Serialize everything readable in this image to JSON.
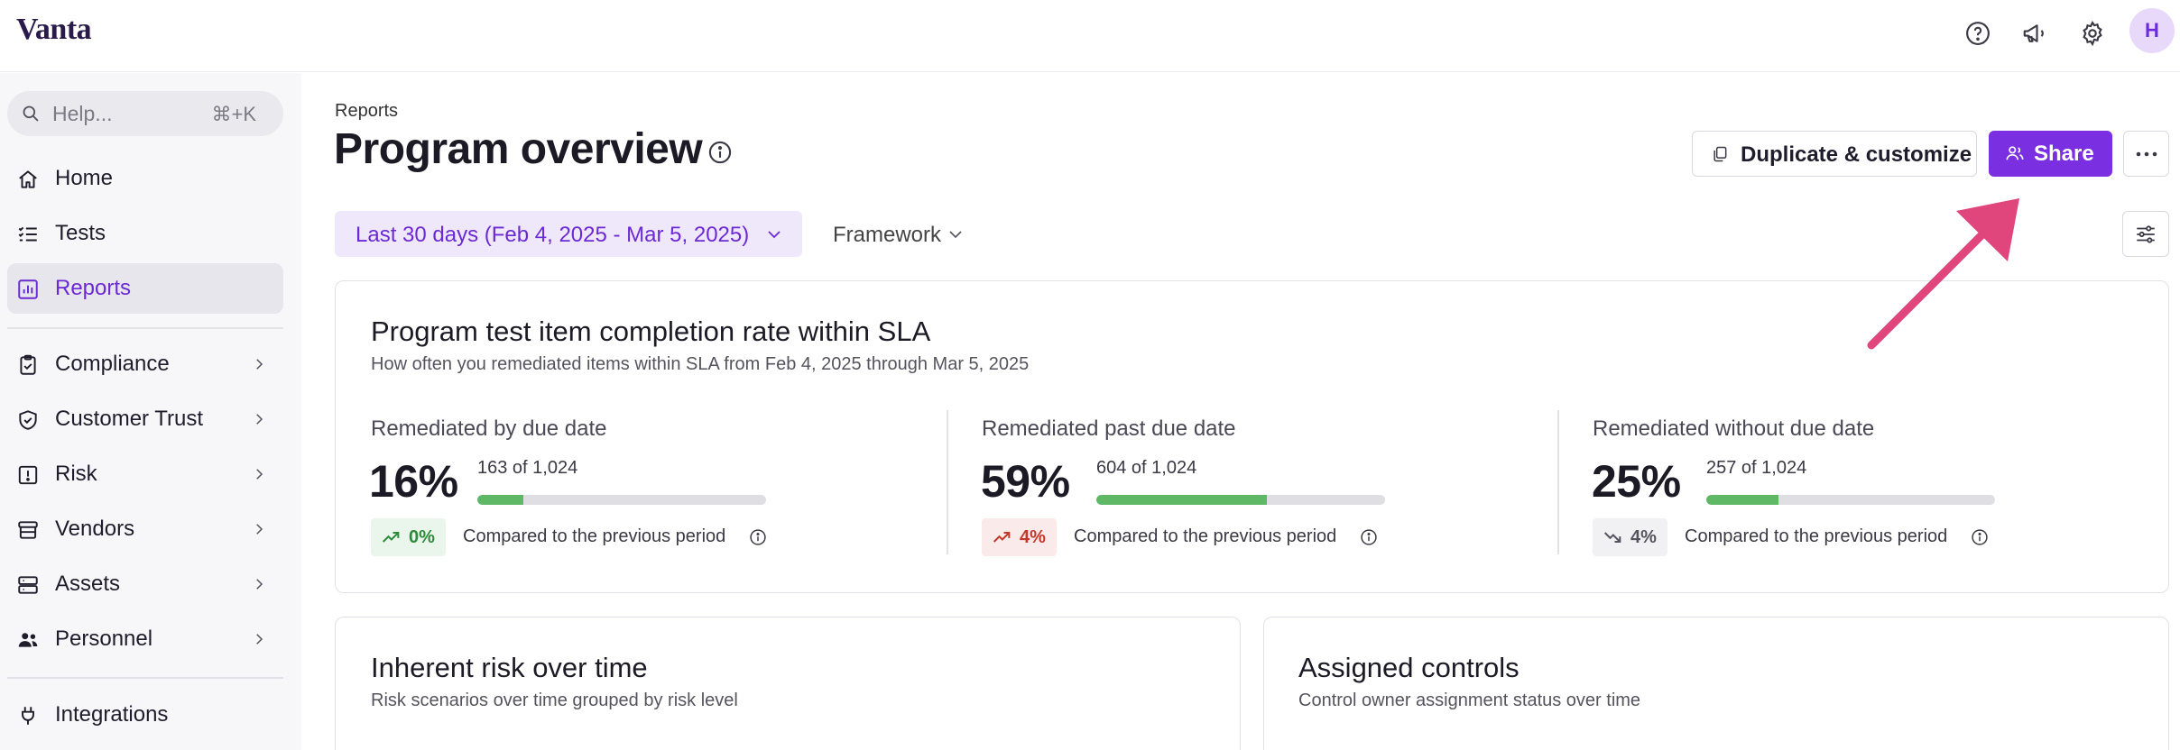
{
  "app": {
    "logo": "Vanta",
    "avatar_initial": "H"
  },
  "topbar": {
    "icons": [
      "help-circle-icon",
      "megaphone-icon",
      "gear-icon"
    ]
  },
  "sidebar": {
    "search": {
      "placeholder": "Help...",
      "shortcut": "⌘+K"
    },
    "items": [
      {
        "label": "Home",
        "icon": "home-icon",
        "has_chevron": false,
        "active": false
      },
      {
        "label": "Tests",
        "icon": "checklist-icon",
        "has_chevron": false,
        "active": false
      },
      {
        "label": "Reports",
        "icon": "bar-chart-icon",
        "has_chevron": false,
        "active": true
      },
      {
        "label": "Compliance",
        "icon": "clipboard-icon",
        "has_chevron": true,
        "active": false
      },
      {
        "label": "Customer Trust",
        "icon": "shield-check-icon",
        "has_chevron": true,
        "active": false
      },
      {
        "label": "Risk",
        "icon": "alert-square-icon",
        "has_chevron": true,
        "active": false
      },
      {
        "label": "Vendors",
        "icon": "stack-icon",
        "has_chevron": true,
        "active": false
      },
      {
        "label": "Assets",
        "icon": "server-icon",
        "has_chevron": true,
        "active": false
      },
      {
        "label": "Personnel",
        "icon": "people-icon",
        "has_chevron": true,
        "active": false
      },
      {
        "label": "Integrations",
        "icon": "plug-icon",
        "has_chevron": false,
        "active": false
      }
    ]
  },
  "page": {
    "breadcrumb": "Reports",
    "title": "Program overview",
    "actions": {
      "duplicate": "Duplicate & customize",
      "share": "Share"
    },
    "filters": {
      "date_range": "Last 30 days (Feb 4, 2025 - Mar 5, 2025)",
      "framework": "Framework"
    }
  },
  "sla_card": {
    "title": "Program test item completion rate within SLA",
    "subtitle": "How often you remediated items within SLA from Feb 4, 2025 through Mar 5, 2025",
    "metrics": [
      {
        "label": "Remediated by due date",
        "percent": "16%",
        "count": "163 of 1,024",
        "fill_fraction": 0.16,
        "delta": "0%",
        "delta_trend": "up",
        "delta_color": "#2f8a3b",
        "delta_bg": "#eaf6ec",
        "compare": "Compared to the previous period"
      },
      {
        "label": "Remediated past due date",
        "percent": "59%",
        "count": "604 of 1,024",
        "fill_fraction": 0.59,
        "delta": "4%",
        "delta_trend": "up",
        "delta_color": "#c0392b",
        "delta_bg": "#fbeaea",
        "compare": "Compared to the previous period"
      },
      {
        "label": "Remediated without due date",
        "percent": "25%",
        "count": "257 of 1,024",
        "fill_fraction": 0.25,
        "delta": "4%",
        "delta_trend": "down",
        "delta_color": "#55545e",
        "delta_bg": "#f1f1f4",
        "compare": "Compared to the previous period"
      }
    ]
  },
  "risk_card": {
    "title": "Inherent risk over time",
    "subtitle": "Risk scenarios over time grouped by risk level"
  },
  "controls_card": {
    "title": "Assigned controls",
    "subtitle": "Control owner assignment status over time"
  },
  "colors": {
    "accent": "#7a2fe0",
    "annotation_arrow": "#e0457b",
    "bar_fill": "#5fb866"
  }
}
